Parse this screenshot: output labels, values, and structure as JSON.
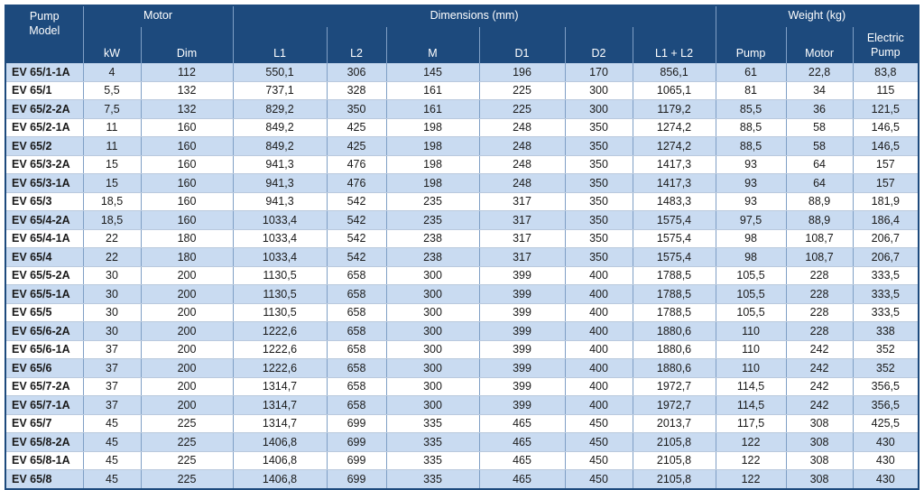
{
  "header": {
    "model": [
      "Pump",
      "Model"
    ],
    "motor": "Motor",
    "dimensions": "Dimensions (mm)",
    "weight": "Weight (kg)",
    "kw": "kW",
    "dim": "Dim",
    "l1": "L1",
    "l2": "L2",
    "m": "M",
    "d1": "D1",
    "d2": "D2",
    "l1l2": "L1 + L2",
    "pump": "Pump",
    "motor_w": "Motor",
    "electric_pump": [
      "Electric",
      "Pump"
    ]
  },
  "rows": [
    [
      "EV 65/1-1A",
      "4",
      "112",
      "550,1",
      "306",
      "145",
      "196",
      "170",
      "856,1",
      "61",
      "22,8",
      "83,8"
    ],
    [
      "EV 65/1",
      "5,5",
      "132",
      "737,1",
      "328",
      "161",
      "225",
      "300",
      "1065,1",
      "81",
      "34",
      "115"
    ],
    [
      "EV 65/2-2A",
      "7,5",
      "132",
      "829,2",
      "350",
      "161",
      "225",
      "300",
      "1179,2",
      "85,5",
      "36",
      "121,5"
    ],
    [
      "EV 65/2-1A",
      "11",
      "160",
      "849,2",
      "425",
      "198",
      "248",
      "350",
      "1274,2",
      "88,5",
      "58",
      "146,5"
    ],
    [
      "EV 65/2",
      "11",
      "160",
      "849,2",
      "425",
      "198",
      "248",
      "350",
      "1274,2",
      "88,5",
      "58",
      "146,5"
    ],
    [
      "EV 65/3-2A",
      "15",
      "160",
      "941,3",
      "476",
      "198",
      "248",
      "350",
      "1417,3",
      "93",
      "64",
      "157"
    ],
    [
      "EV 65/3-1A",
      "15",
      "160",
      "941,3",
      "476",
      "198",
      "248",
      "350",
      "1417,3",
      "93",
      "64",
      "157"
    ],
    [
      "EV 65/3",
      "18,5",
      "160",
      "941,3",
      "542",
      "235",
      "317",
      "350",
      "1483,3",
      "93",
      "88,9",
      "181,9"
    ],
    [
      "EV 65/4-2A",
      "18,5",
      "160",
      "1033,4",
      "542",
      "235",
      "317",
      "350",
      "1575,4",
      "97,5",
      "88,9",
      "186,4"
    ],
    [
      "EV 65/4-1A",
      "22",
      "180",
      "1033,4",
      "542",
      "238",
      "317",
      "350",
      "1575,4",
      "98",
      "108,7",
      "206,7"
    ],
    [
      "EV 65/4",
      "22",
      "180",
      "1033,4",
      "542",
      "238",
      "317",
      "350",
      "1575,4",
      "98",
      "108,7",
      "206,7"
    ],
    [
      "EV 65/5-2A",
      "30",
      "200",
      "1130,5",
      "658",
      "300",
      "399",
      "400",
      "1788,5",
      "105,5",
      "228",
      "333,5"
    ],
    [
      "EV 65/5-1A",
      "30",
      "200",
      "1130,5",
      "658",
      "300",
      "399",
      "400",
      "1788,5",
      "105,5",
      "228",
      "333,5"
    ],
    [
      "EV 65/5",
      "30",
      "200",
      "1130,5",
      "658",
      "300",
      "399",
      "400",
      "1788,5",
      "105,5",
      "228",
      "333,5"
    ],
    [
      "EV 65/6-2A",
      "30",
      "200",
      "1222,6",
      "658",
      "300",
      "399",
      "400",
      "1880,6",
      "110",
      "228",
      "338"
    ],
    [
      "EV 65/6-1A",
      "37",
      "200",
      "1222,6",
      "658",
      "300",
      "399",
      "400",
      "1880,6",
      "110",
      "242",
      "352"
    ],
    [
      "EV 65/6",
      "37",
      "200",
      "1222,6",
      "658",
      "300",
      "399",
      "400",
      "1880,6",
      "110",
      "242",
      "352"
    ],
    [
      "EV 65/7-2A",
      "37",
      "200",
      "1314,7",
      "658",
      "300",
      "399",
      "400",
      "1972,7",
      "114,5",
      "242",
      "356,5"
    ],
    [
      "EV 65/7-1A",
      "37",
      "200",
      "1314,7",
      "658",
      "300",
      "399",
      "400",
      "1972,7",
      "114,5",
      "242",
      "356,5"
    ],
    [
      "EV 65/7",
      "45",
      "225",
      "1314,7",
      "699",
      "335",
      "465",
      "450",
      "2013,7",
      "117,5",
      "308",
      "425,5"
    ],
    [
      "EV 65/8-2A",
      "45",
      "225",
      "1406,8",
      "699",
      "335",
      "465",
      "450",
      "2105,8",
      "122",
      "308",
      "430"
    ],
    [
      "EV 65/8-1A",
      "45",
      "225",
      "1406,8",
      "699",
      "335",
      "465",
      "450",
      "2105,8",
      "122",
      "308",
      "430"
    ],
    [
      "EV 65/8",
      "45",
      "225",
      "1406,8",
      "699",
      "335",
      "465",
      "450",
      "2105,8",
      "122",
      "308",
      "430"
    ]
  ],
  "colors": {
    "header_bg": "#1d4a7d",
    "row_alt": "#c9dbf1",
    "row_plain": "#ffffff"
  }
}
